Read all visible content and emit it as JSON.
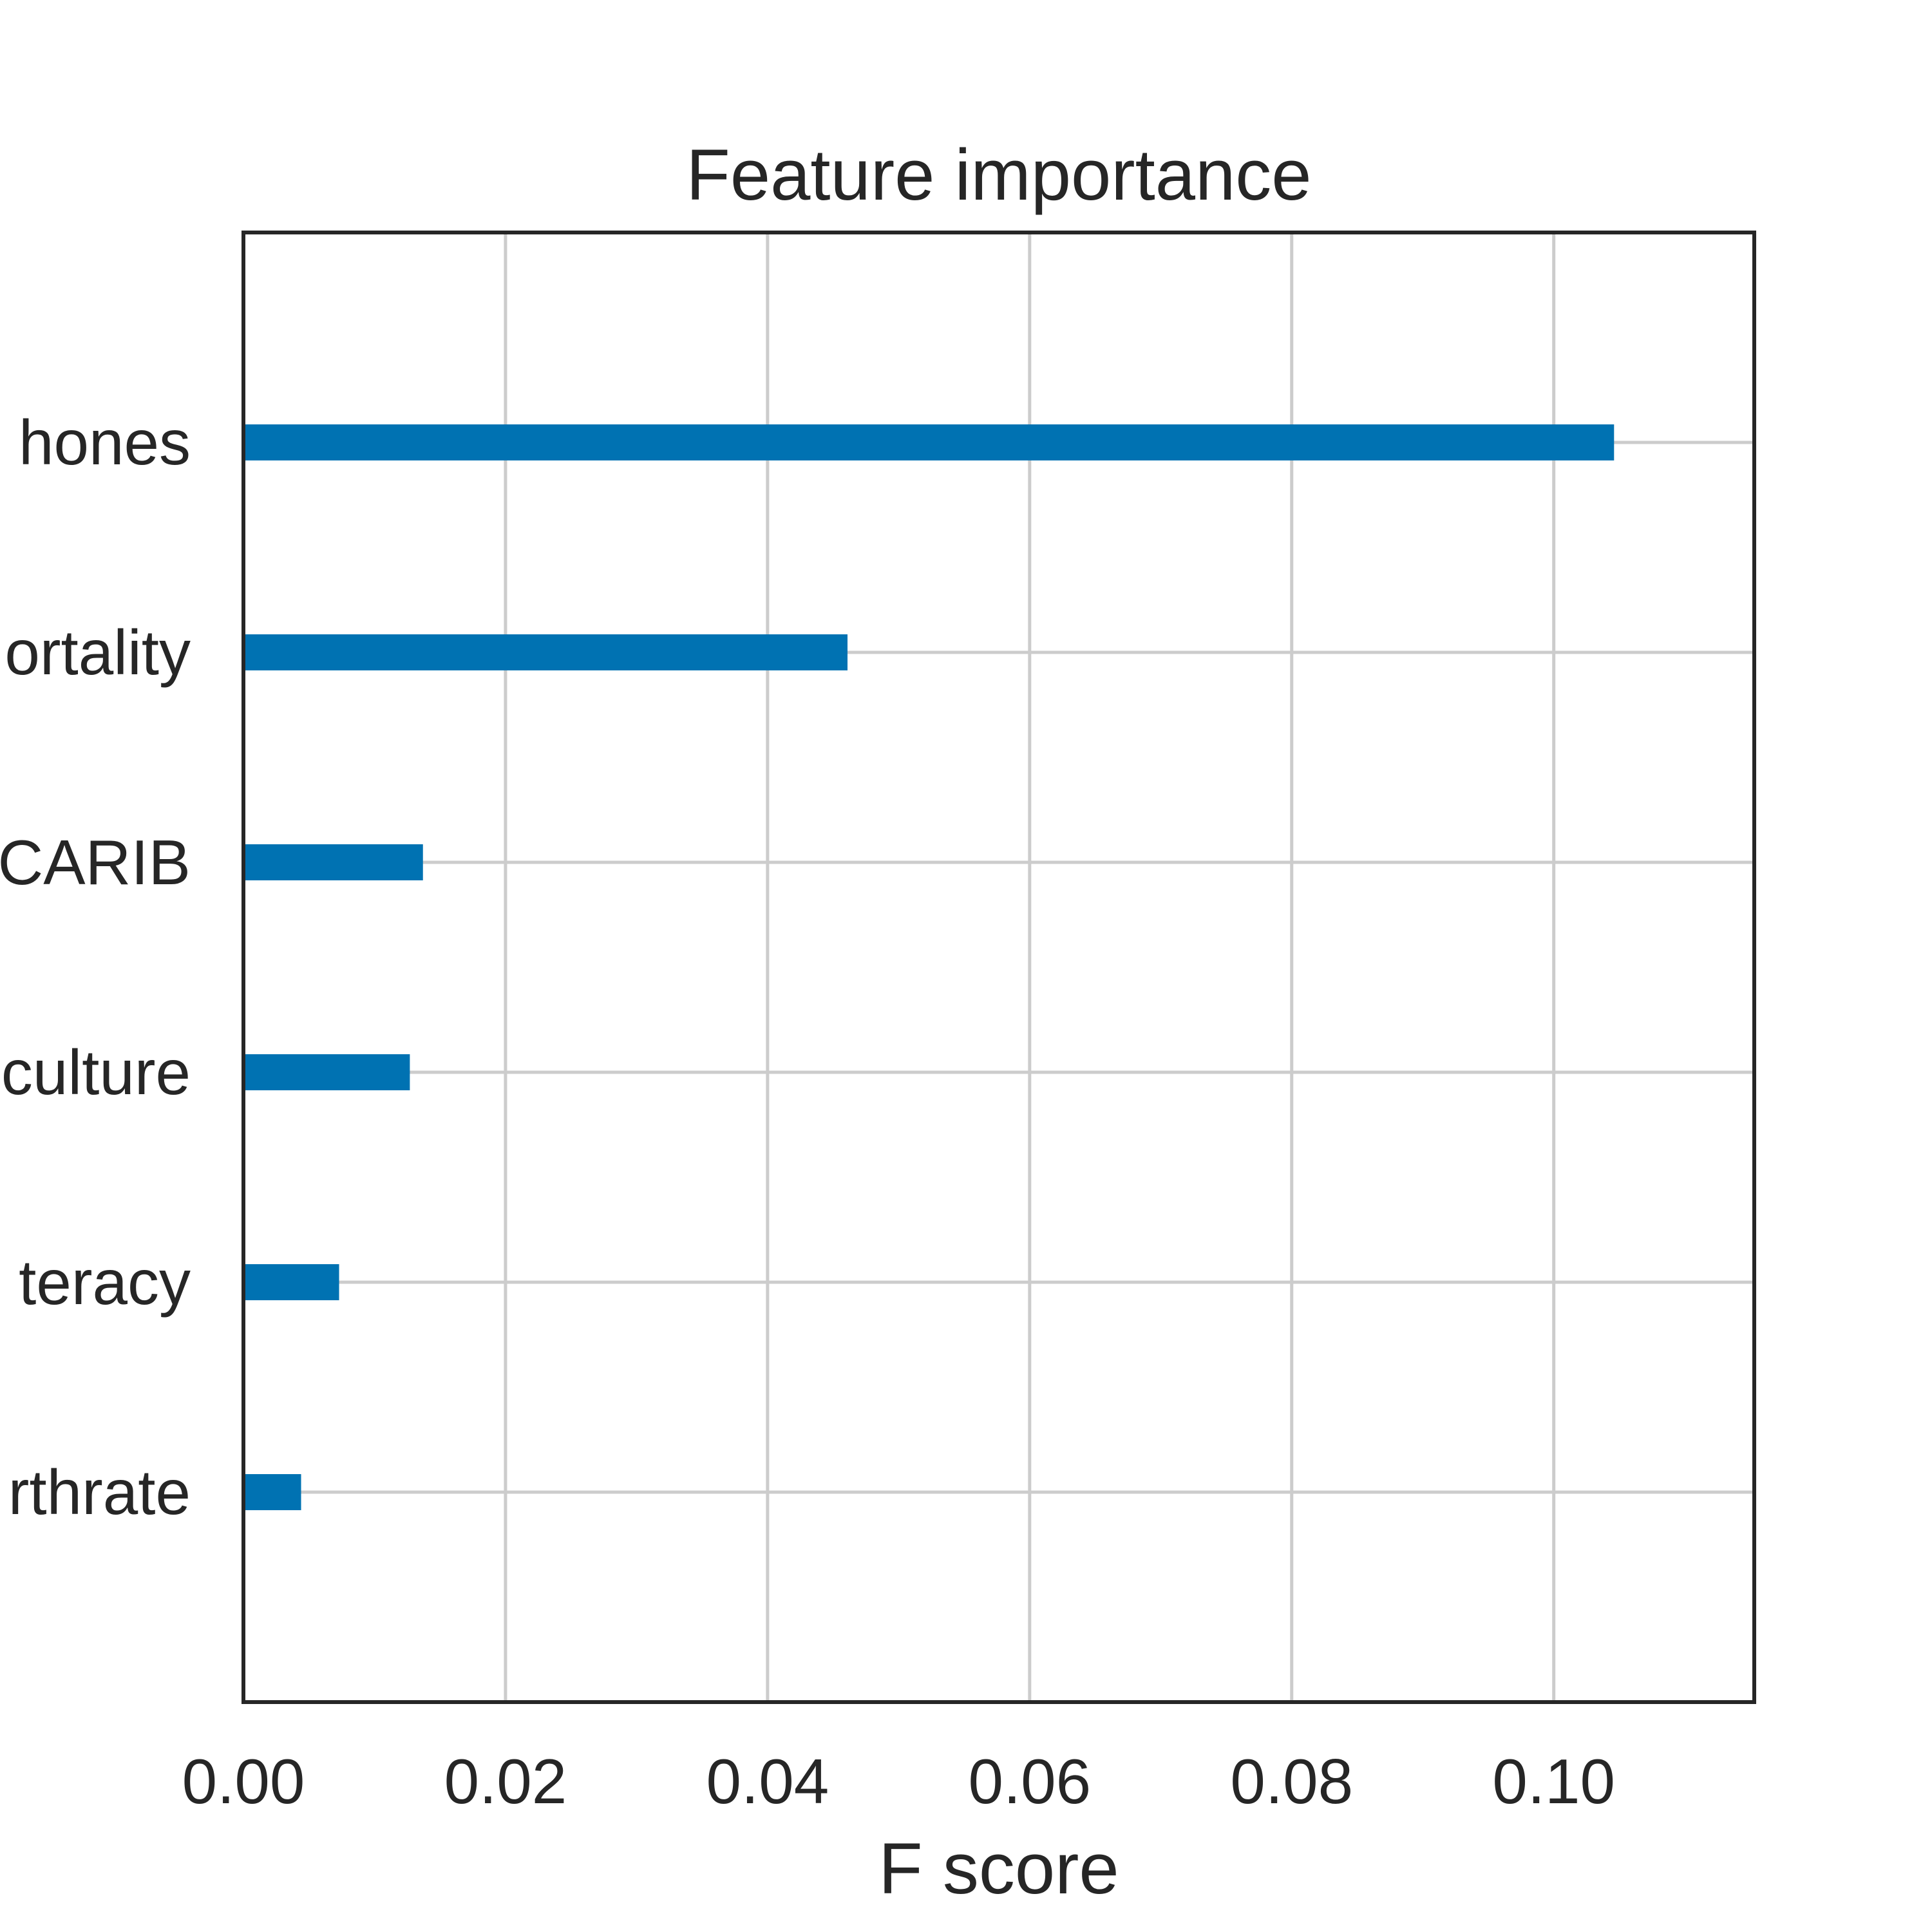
{
  "chart_data": {
    "type": "bar",
    "orientation": "horizontal",
    "title": "Feature importance",
    "xlabel": "F score",
    "ylabel": "",
    "categories": [
      "Phones",
      "Infant mortality",
      "LAT. AMER. & CARIB",
      "Agriculture",
      "Literacy",
      "Birthrate"
    ],
    "category_labels_visible": [
      "hones",
      "ortality",
      "CARIB",
      "culture",
      "teracy",
      "rthrate"
    ],
    "values": [
      0.1046,
      0.0461,
      0.0137,
      0.0127,
      0.0073,
      0.0044
    ],
    "xlim": [
      0.0,
      0.1153
    ],
    "xticks": [
      0.0,
      0.02,
      0.04,
      0.06,
      0.08,
      0.1
    ],
    "xtick_labels": [
      "0.00",
      "0.02",
      "0.04",
      "0.06",
      "0.08",
      "0.10"
    ],
    "grid": true,
    "legend": "none",
    "colors": {
      "bar": "#0072b2",
      "grid": "#cccccc",
      "axes": "#262626",
      "text": "#262626"
    }
  }
}
